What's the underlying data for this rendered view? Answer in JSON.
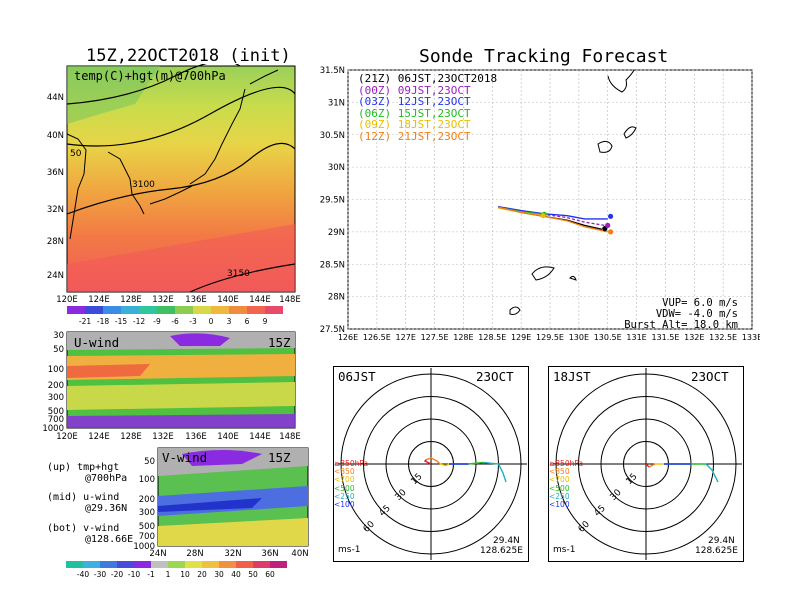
{
  "left_panel": {
    "title": "15Z,22OCT2018 (init)",
    "map_label": "temp(C)+hgt(m)@700hPa",
    "lat_ticks": [
      "44N",
      "40N",
      "36N",
      "32N",
      "28N",
      "24N"
    ],
    "lon_ticks": [
      "120E",
      "124E",
      "128E",
      "132E",
      "136E",
      "140E",
      "144E",
      "148E"
    ],
    "contour_labels": [
      "50",
      "3100",
      "3150"
    ],
    "temp_colorbar": [
      "-21",
      "-18",
      "-15",
      "-12",
      "-9",
      "-6",
      "-3",
      "0",
      "3",
      "6",
      "9"
    ],
    "u_label": "U-wind",
    "u_time": "15Z",
    "u_pressure_ticks": [
      "30",
      "50",
      "100",
      "200",
      "300",
      "500",
      "700",
      "1000"
    ],
    "v_label": "V-wind",
    "v_time": "15Z",
    "v_pressure_ticks": [
      "50",
      "100",
      "200",
      "300",
      "500",
      "700",
      "1000"
    ],
    "v_lat_ticks": [
      "24N",
      "28N",
      "32N",
      "36N",
      "40N"
    ],
    "wind_colorbar": [
      "-40",
      "-30",
      "-20",
      "-10",
      "-1",
      "1",
      "10",
      "20",
      "30",
      "40",
      "50",
      "60"
    ],
    "captions": [
      {
        "line1": "(up) tmp+hgt",
        "line2": "@700hPa"
      },
      {
        "line1": "(mid) u-wind",
        "line2": "@29.36N"
      },
      {
        "line1": "(bot) v-wind",
        "line2": "@128.66E"
      }
    ]
  },
  "right_panel": {
    "title": "Sonde Tracking Forecast",
    "legend": [
      {
        "text": "(21Z) 06JST,23OCT2018",
        "color": "#000000"
      },
      {
        "text": "(00Z) 09JST,23OCT",
        "color": "#9a1fbf"
      },
      {
        "text": "(03Z) 12JST,23OCT",
        "color": "#2233ee"
      },
      {
        "text": "(06Z) 15JST,23OCT",
        "color": "#22bb22"
      },
      {
        "text": "(09Z) 18JST,23OCT",
        "color": "#e8c000"
      },
      {
        "text": "(12Z) 21JST,23OCT",
        "color": "#f07f10"
      }
    ],
    "info": [
      "VUP= 6.0 m/s",
      "VDW= -4.0 m/s",
      "Burst Alt= 18.0 km"
    ],
    "lat_ticks": [
      "31.5N",
      "31N",
      "30.5N",
      "30N",
      "29.5N",
      "29N",
      "28.5N",
      "28N",
      "27.5N"
    ],
    "lon_ticks": [
      "126E",
      "126.5E",
      "127E",
      "127.5E",
      "128E",
      "128.5E",
      "129E",
      "129.5E",
      "130E",
      "130.5E",
      "131E",
      "131.5E",
      "132E",
      "132.5E",
      "133E"
    ]
  },
  "hodographs": [
    {
      "time": "06JST",
      "date": "23OCT",
      "lat": "29.4N",
      "lon": "128.625E",
      "unit": "ms-1"
    },
    {
      "time": "18JST",
      "date": "23OCT",
      "lat": "29.4N",
      "lon": "128.625E",
      "unit": "ms-1"
    }
  ],
  "hodo_ring_labels": [
    "15",
    "30",
    "45",
    "60"
  ],
  "hodo_levels": [
    {
      "text": "≥850hPa",
      "color": "#e02020"
    },
    {
      "text": "<850",
      "color": "#f08020"
    },
    {
      "text": "<700",
      "color": "#e8c000"
    },
    {
      "text": "<500",
      "color": "#22bb22"
    },
    {
      "text": "<250",
      "color": "#20b0c0"
    },
    {
      "text": "<100",
      "color": "#2233ee"
    }
  ],
  "chart_data": [
    {
      "type": "line",
      "title": "Sonde Tracking Forecast",
      "xlabel": "",
      "ylabel": "",
      "xlim": [
        126,
        133
      ],
      "ylim": [
        27.5,
        31.5
      ],
      "series": [
        {
          "name": "(21Z) 06JST,23OCT2018",
          "x": [
            128.6,
            129.0,
            129.4,
            129.8,
            130.1,
            130.4
          ],
          "y": [
            29.38,
            29.3,
            29.24,
            29.18,
            29.1,
            29.04
          ]
        },
        {
          "name": "(00Z) 09JST,23OCT",
          "x": [
            128.6,
            129.0,
            129.4,
            129.8,
            130.1,
            130.45
          ],
          "y": [
            29.39,
            29.32,
            29.27,
            29.22,
            29.15,
            29.1
          ]
        },
        {
          "name": "(03Z) 12JST,23OCT",
          "x": [
            128.6,
            129.0,
            129.4,
            129.8,
            130.1,
            130.5
          ],
          "y": [
            29.39,
            29.33,
            29.28,
            29.25,
            29.2,
            29.2
          ]
        },
        {
          "name": "(06Z) 15JST,23OCT",
          "x": [
            128.6,
            129.0,
            129.4
          ],
          "y": [
            29.38,
            29.31,
            29.27
          ]
        },
        {
          "name": "(09Z) 18JST,23OCT",
          "x": [
            128.6,
            129.0,
            129.4
          ],
          "y": [
            29.37,
            29.3,
            29.25
          ]
        },
        {
          "name": "(12Z) 21JST,23OCT",
          "x": [
            128.6,
            129.0,
            129.4,
            129.8,
            130.1,
            130.5
          ],
          "y": [
            29.38,
            29.3,
            29.24,
            29.17,
            29.08,
            29.0
          ]
        }
      ],
      "endpoints": [
        {
          "x": 130.45,
          "y": 29.05,
          "color": "#000000"
        },
        {
          "x": 130.55,
          "y": 29.24,
          "color": "#2233ee"
        },
        {
          "x": 130.5,
          "y": 29.1,
          "color": "#9a1fbf"
        },
        {
          "x": 130.55,
          "y": 29.0,
          "color": "#f07f10"
        },
        {
          "x": 129.4,
          "y": 29.27,
          "color": "#22bb22"
        },
        {
          "x": 129.38,
          "y": 29.25,
          "color": "#e8c000"
        }
      ]
    },
    {
      "type": "line",
      "title": "06JST 23OCT hodograph",
      "xlabel": "",
      "ylabel": "",
      "series": [
        {
          "name": "≥850hPa",
          "u": [
            0,
            -2,
            -4,
            -3
          ],
          "v": [
            0,
            1,
            2,
            3
          ]
        },
        {
          "name": "<850",
          "u": [
            -3,
            0,
            4,
            6
          ],
          "v": [
            3,
            4,
            2,
            0
          ]
        },
        {
          "name": "<700",
          "u": [
            6,
            10,
            12
          ],
          "v": [
            0,
            -1,
            0
          ]
        },
        {
          "name": "<500",
          "u": [
            12,
            25,
            35
          ],
          "v": [
            0,
            0,
            1
          ]
        },
        {
          "name": "<250",
          "u": [
            35,
            45,
            48,
            50
          ],
          "v": [
            1,
            0,
            -6,
            -12
          ]
        },
        {
          "name": "<100",
          "u": [
            12,
            18,
            25
          ],
          "v": [
            0,
            0,
            0
          ]
        }
      ]
    },
    {
      "type": "line",
      "title": "18JST 23OCT hodograph",
      "xlabel": "",
      "ylabel": "",
      "series": [
        {
          "name": "≥850hPa",
          "u": [
            0,
            1,
            2
          ],
          "v": [
            0,
            -1,
            -2
          ]
        },
        {
          "name": "<850",
          "u": [
            2,
            4,
            6
          ],
          "v": [
            -2,
            -1,
            0
          ]
        },
        {
          "name": "<700",
          "u": [
            6,
            10,
            12
          ],
          "v": [
            0,
            0,
            0
          ]
        },
        {
          "name": "<500",
          "u": [
            12,
            25,
            40
          ],
          "v": [
            0,
            0,
            0
          ]
        },
        {
          "name": "<250",
          "u": [
            40,
            44,
            46,
            48
          ],
          "v": [
            0,
            -4,
            -8,
            -12
          ]
        },
        {
          "name": "<100",
          "u": [
            12,
            20,
            30
          ],
          "v": [
            0,
            0,
            0
          ]
        }
      ]
    }
  ]
}
